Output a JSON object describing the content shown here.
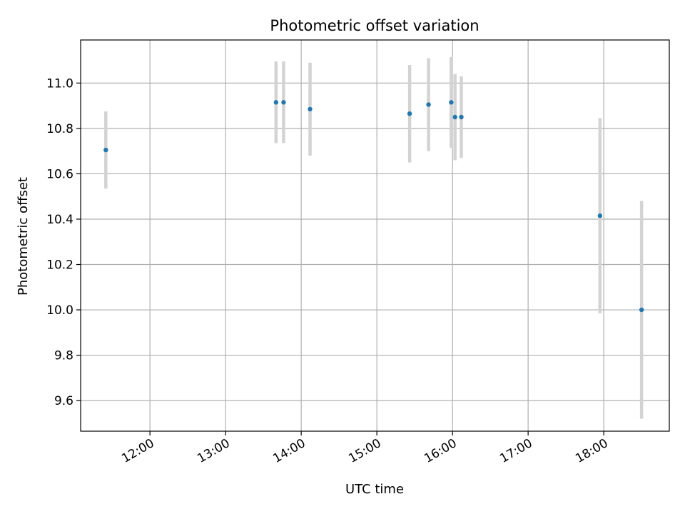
{
  "chart_data": {
    "type": "scatter",
    "title": "Photometric offset variation",
    "xlabel": "UTC time",
    "ylabel": "Photometric offset",
    "x_ticks": [
      "12:00",
      "13:00",
      "14:00",
      "15:00",
      "16:00",
      "17:00",
      "18:00"
    ],
    "y_ticks": [
      "9.6",
      "9.8",
      "10.0",
      "10.2",
      "10.4",
      "10.6",
      "10.8",
      "11.0"
    ],
    "xlim": [
      "11:05",
      "18:52"
    ],
    "ylim": [
      9.465,
      11.19
    ],
    "grid": true,
    "legend": "none",
    "marker_color": "#1f77b4",
    "errorbar_color": "#d3d3d3",
    "points": [
      {
        "x": "11:25",
        "y": 10.705,
        "yerr_low": 10.535,
        "yerr_high": 10.875
      },
      {
        "x": "13:40",
        "y": 10.915,
        "yerr_low": 10.735,
        "yerr_high": 11.095
      },
      {
        "x": "13:46",
        "y": 10.915,
        "yerr_low": 10.735,
        "yerr_high": 11.095
      },
      {
        "x": "14:07",
        "y": 10.885,
        "yerr_low": 10.68,
        "yerr_high": 11.09
      },
      {
        "x": "15:26",
        "y": 10.865,
        "yerr_low": 10.65,
        "yerr_high": 11.08
      },
      {
        "x": "15:41",
        "y": 10.905,
        "yerr_low": 10.7,
        "yerr_high": 11.11
      },
      {
        "x": "15:59",
        "y": 10.915,
        "yerr_low": 10.715,
        "yerr_high": 11.115
      },
      {
        "x": "16:02",
        "y": 10.85,
        "yerr_low": 10.66,
        "yerr_high": 11.04
      },
      {
        "x": "16:07",
        "y": 10.85,
        "yerr_low": 10.67,
        "yerr_high": 11.03
      },
      {
        "x": "17:57",
        "y": 10.415,
        "yerr_low": 9.985,
        "yerr_high": 10.845
      },
      {
        "x": "18:30",
        "y": 10.0,
        "yerr_low": 9.52,
        "yerr_high": 10.48
      }
    ]
  }
}
